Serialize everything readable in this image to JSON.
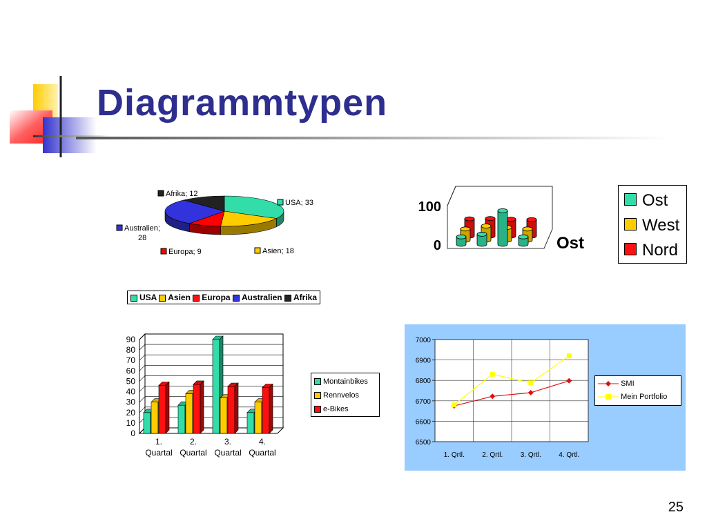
{
  "slide": {
    "title": "Diagrammtypen",
    "page_number": "25",
    "colors": {
      "title": "#2e2e8f",
      "yellow": "#ffcc00",
      "red": "#ff2020",
      "blue": "#3333cc"
    }
  },
  "chart_data": [
    {
      "type": "pie",
      "slices": [
        {
          "name": "USA",
          "value": 33,
          "label": "USA; 33",
          "color": "#33ddaa"
        },
        {
          "name": "Asien",
          "value": 18,
          "label": "Asien; 18",
          "color": "#ffcc00"
        },
        {
          "name": "Europa",
          "value": 9,
          "label": "Europa; 9",
          "color": "#ff0000"
        },
        {
          "name": "Australien",
          "value": 28,
          "label_line1": "Australien;",
          "label_line2": "28",
          "color": "#3333dd"
        },
        {
          "name": "Afrika",
          "value": 12,
          "label": "Afrika; 12",
          "color": "#222222"
        }
      ],
      "legend": [
        "USA",
        "Asien",
        "Europa",
        "Australien",
        "Afrika"
      ],
      "legend_placement": "bottom"
    },
    {
      "type": "bar",
      "subtype": "3d-cylinder",
      "series": [
        {
          "name": "Ost",
          "values": [
            20,
            27,
            90,
            20
          ],
          "color": "#33ddaa"
        },
        {
          "name": "West",
          "values": [
            30,
            38,
            34,
            30
          ],
          "color": "#ffcc00"
        },
        {
          "name": "Nord",
          "values": [
            46,
            47,
            45,
            44
          ],
          "color": "#ff1010"
        }
      ],
      "y_ticks": [
        "0",
        "100"
      ],
      "ylim": [
        0,
        100
      ],
      "axis_label": "Ost",
      "legend": [
        "Ost",
        "West",
        "Nord"
      ],
      "legend_placement": "right"
    },
    {
      "type": "bar",
      "subtype": "3d",
      "categories": [
        [
          "1.",
          "Quartal"
        ],
        [
          "2.",
          "Quartal"
        ],
        [
          "3.",
          "Quartal"
        ],
        [
          "4.",
          "Quartal"
        ]
      ],
      "series": [
        {
          "name": "Montainbikes",
          "values": [
            20,
            27,
            90,
            20
          ],
          "color": "#33ddaa"
        },
        {
          "name": "Rennvelos",
          "values": [
            30,
            38,
            34,
            30
          ],
          "color": "#ffcc00"
        },
        {
          "name": "e-Bikes",
          "values": [
            46,
            47,
            45,
            44
          ],
          "color": "#ff1010"
        }
      ],
      "y_ticks": [
        "0",
        "10",
        "20",
        "30",
        "40",
        "50",
        "60",
        "70",
        "80",
        "90"
      ],
      "ylim": [
        0,
        90
      ],
      "legend_placement": "right"
    },
    {
      "type": "line",
      "categories": [
        "1. Qrtl.",
        "2. Qrtl.",
        "3. Qrtl.",
        "4. Qrtl."
      ],
      "series": [
        {
          "name": "SMI",
          "values": [
            6675,
            6722,
            6740,
            6798
          ],
          "color": "#dd1111",
          "marker": "diamond"
        },
        {
          "name": "Mein Portfolio",
          "values": [
            6680,
            6830,
            6788,
            6920
          ],
          "color": "#ffff00",
          "marker": "square"
        }
      ],
      "y_ticks": [
        "6500",
        "6600",
        "6700",
        "6800",
        "6900",
        "7000"
      ],
      "ylim": [
        6500,
        7000
      ],
      "grid": true,
      "background": "#99ccff",
      "legend_placement": "right"
    }
  ]
}
